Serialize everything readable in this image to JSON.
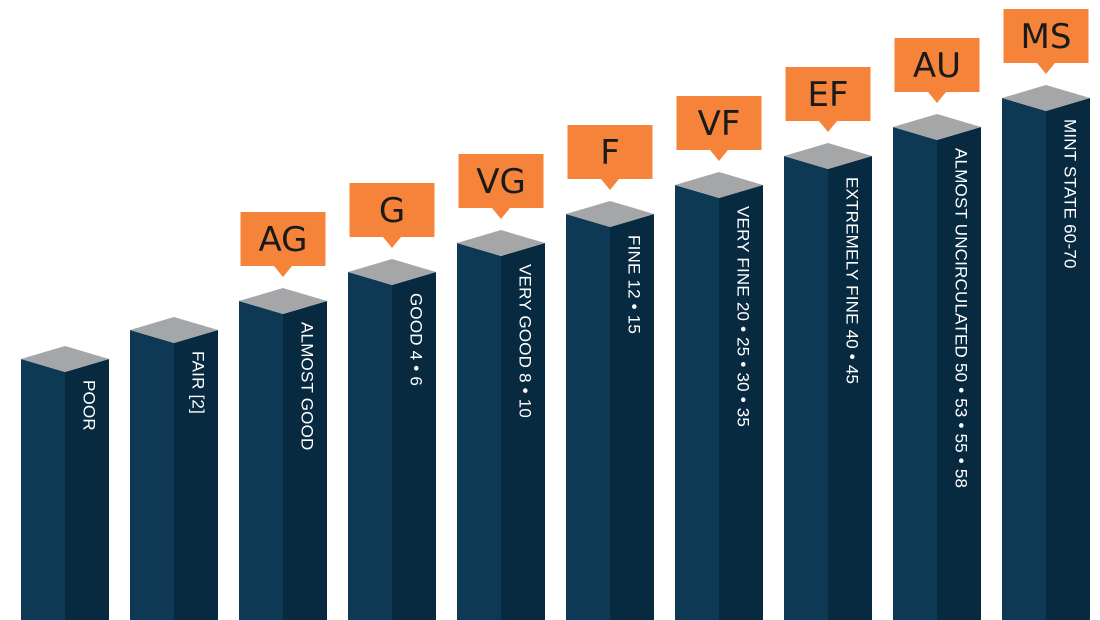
{
  "colors": {
    "bar_front": "#0e3954",
    "bar_side": "#082a40",
    "bar_top": "#a4a6a8",
    "badge": "#f5843a",
    "badge_text": "#1a1a1a",
    "label": "#ffffff"
  },
  "grades": [
    {
      "label": "POOR",
      "abbr": ""
    },
    {
      "label": "FAIR [2]",
      "abbr": ""
    },
    {
      "label": "ALMOST GOOD",
      "abbr": "AG"
    },
    {
      "label": "GOOD 4 • 6",
      "abbr": "G"
    },
    {
      "label": "VERY GOOD 8 • 10",
      "abbr": "VG"
    },
    {
      "label": "FINE 12 • 15",
      "abbr": "F"
    },
    {
      "label": "VERY FINE 20 • 25 • 30 • 35",
      "abbr": "VF"
    },
    {
      "label": "EXTREMELY FINE 40 • 45",
      "abbr": "EF"
    },
    {
      "label": "ALMOST UNCIRCULATED 50 • 53 • 55 • 58",
      "abbr": "AU"
    },
    {
      "label": "MINT STATE 60-70",
      "abbr": "MS"
    }
  ]
}
